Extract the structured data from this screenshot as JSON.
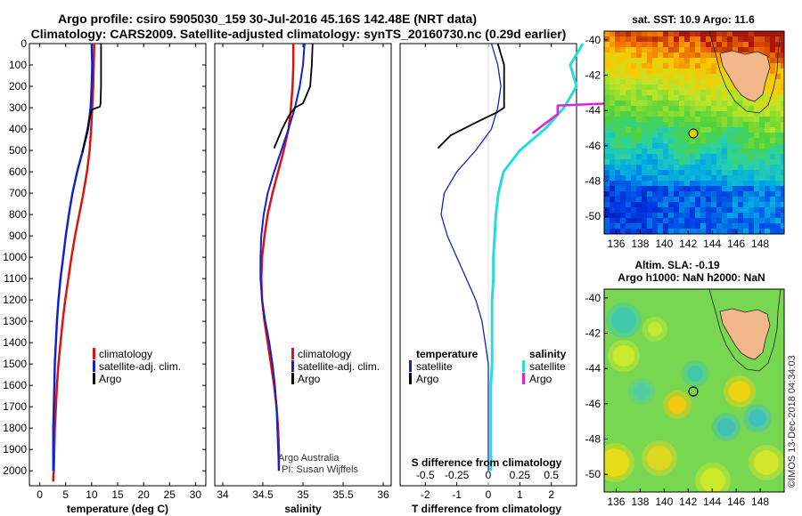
{
  "header": {
    "line1": "Argo profile: csiro 5905030_159 30-Jul-2016 45.16S 142.48E (NRT data)",
    "line2": "Climatology: CARS2009. Satellite-adjusted climatology: synTS_20160730.nc (0.29d earlier)"
  },
  "credits": {
    "org": "Argo Australia",
    "pi": "PI: Susan Wijffels",
    "imos": "©IMOS 13-Dec-2018 04:34:03"
  },
  "colors": {
    "climatology": "#dd1111",
    "satellite": "#1122cc",
    "argo": "#000000",
    "sal_satellite": "#22dddd",
    "sal_argo": "#dd22dd",
    "land": "#f2b88a"
  },
  "chart_data": [
    {
      "type": "line",
      "xlabel": "temperature (deg C)",
      "ylabel": "",
      "xlim": [
        -2,
        32
      ],
      "ylim": [
        2070,
        0
      ],
      "xticks": [
        "0",
        "5",
        "10",
        "15",
        "20",
        "25",
        "30"
      ],
      "yticks": [
        "0",
        "100",
        "200",
        "300",
        "400",
        "500",
        "600",
        "700",
        "800",
        "900",
        "1000",
        "1100",
        "1200",
        "1300",
        "1400",
        "1500",
        "1600",
        "1700",
        "1800",
        "1900",
        "2000"
      ],
      "legend": [
        "climatology",
        "satellite-adj. clim.",
        "Argo"
      ],
      "series": [
        {
          "name": "climatology",
          "x": [
            10.5,
            10.4,
            10.3,
            10.1,
            9.9,
            9.6,
            9.1,
            8.4,
            7.6,
            6.8,
            6.1,
            5.5,
            4.9,
            4.4,
            4.0,
            3.6,
            3.3,
            3.1,
            2.9,
            2.8,
            2.7,
            2.6,
            2.6
          ],
          "y": [
            0,
            100,
            200,
            300,
            400,
            500,
            600,
            700,
            800,
            900,
            1000,
            1100,
            1200,
            1300,
            1400,
            1500,
            1600,
            1700,
            1800,
            1900,
            2000,
            2030,
            2050
          ]
        },
        {
          "name": "satellite-adj. clim.",
          "x": [
            10.0,
            10.1,
            10.0,
            9.8,
            9.3,
            8.3,
            7.2,
            6.3,
            5.6,
            5.0,
            4.5,
            4.0,
            3.6,
            3.3,
            3.1,
            2.9,
            2.8,
            2.7,
            2.6,
            2.6,
            2.6
          ],
          "y": [
            0,
            100,
            200,
            300,
            400,
            500,
            600,
            700,
            800,
            900,
            1000,
            1100,
            1200,
            1300,
            1400,
            1500,
            1600,
            1700,
            1800,
            1900,
            2000
          ]
        },
        {
          "name": "Argo",
          "x": [
            11.8,
            11.8,
            11.8,
            11.7,
            11.6,
            10.0,
            9.5,
            9.0,
            8.2
          ],
          "y": [
            0,
            100,
            200,
            280,
            295,
            310,
            360,
            420,
            510
          ]
        }
      ]
    },
    {
      "type": "line",
      "xlabel": "salinity",
      "ylabel": "",
      "xlim": [
        33.9,
        36.1
      ],
      "ylim": [
        2070,
        0
      ],
      "xticks": [
        "34",
        "34.5",
        "35",
        "35.5",
        "36"
      ],
      "legend": [
        "climatology",
        "satellite-adj. clim.",
        "Argo"
      ],
      "series": [
        {
          "name": "climatology",
          "x": [
            34.88,
            34.88,
            34.87,
            34.85,
            34.82,
            34.76,
            34.69,
            34.62,
            34.56,
            34.52,
            34.49,
            34.48,
            34.49,
            34.52,
            34.56,
            34.6,
            34.64,
            34.67,
            34.69,
            34.7,
            34.7
          ],
          "y": [
            0,
            100,
            200,
            300,
            400,
            500,
            600,
            700,
            800,
            900,
            1000,
            1100,
            1200,
            1300,
            1400,
            1500,
            1600,
            1700,
            1800,
            1900,
            2000
          ]
        },
        {
          "name": "satellite-adj. clim.",
          "x": [
            35.02,
            35.0,
            34.96,
            34.9,
            34.82,
            34.73,
            34.64,
            34.56,
            34.51,
            34.48,
            34.47,
            34.47,
            34.49,
            34.53,
            34.58,
            34.62,
            34.65,
            34.67,
            34.68,
            34.69,
            34.7
          ],
          "y": [
            0,
            100,
            200,
            300,
            400,
            500,
            600,
            700,
            800,
            900,
            1000,
            1100,
            1200,
            1300,
            1400,
            1500,
            1600,
            1700,
            1800,
            1900,
            2000
          ]
        },
        {
          "name": "Argo",
          "x": [
            35.12,
            35.11,
            35.09,
            35.0,
            34.9,
            34.82,
            34.74,
            34.64
          ],
          "y": [
            0,
            100,
            200,
            280,
            300,
            340,
            400,
            490
          ]
        }
      ]
    },
    {
      "type": "line",
      "xlabel": "T difference from climatology",
      "x2label": "S difference from climatology",
      "xlim": [
        -2.8,
        2.8
      ],
      "x2lim": [
        -0.7,
        0.7
      ],
      "ylim": [
        2070,
        0
      ],
      "xticks": [
        "-2",
        "-1",
        "0",
        "1",
        "2"
      ],
      "x2ticks": [
        "-0.5",
        "-0.25",
        "0",
        "0.25",
        "0.5"
      ],
      "legend_left": [
        "temperature",
        "satellite",
        "Argo"
      ],
      "legend_right": [
        "salinity",
        "satellite",
        "Argo"
      ],
      "series": [
        {
          "name": "satellite",
          "x": [
            0.1,
            0.3,
            0.4,
            0.3,
            0.1,
            -0.4,
            -1.0,
            -1.4,
            -1.5,
            -1.3,
            -1.0,
            -0.7,
            -0.4,
            -0.2,
            -0.1,
            0.0,
            0.0,
            0.0,
            0.0,
            0.0,
            0.0
          ],
          "y": [
            0,
            100,
            200,
            300,
            400,
            500,
            600,
            700,
            800,
            900,
            1000,
            1100,
            1200,
            1300,
            1400,
            1500,
            1600,
            1700,
            1800,
            1900,
            2000
          ]
        },
        {
          "name": "Argo",
          "x": [
            0.3,
            0.5,
            0.5,
            0.5,
            0.3,
            -0.4,
            -1.2,
            -1.6
          ],
          "y": [
            0,
            100,
            200,
            300,
            320,
            370,
            430,
            490
          ]
        },
        {
          "name": "satellite",
          "x": [
            0.75,
            0.65,
            0.7,
            0.6,
            0.45,
            0.25,
            0.12,
            0.08,
            0.06,
            0.05,
            0.04,
            0.04,
            0.03,
            0.03,
            0.03,
            0.03,
            0.02,
            0.02,
            0.02,
            0.02,
            0.02
          ],
          "y": [
            0,
            100,
            200,
            300,
            400,
            500,
            600,
            700,
            800,
            900,
            1000,
            1100,
            1200,
            1300,
            1400,
            1500,
            1600,
            1700,
            1800,
            1900,
            2000
          ]
        },
        {
          "name": "Argo",
          "x": [
            1.7,
            1.65,
            1.45,
            1.4,
            0.55,
            0.55,
            0.35
          ],
          "y": [
            0,
            100,
            200,
            270,
            290,
            330,
            420
          ]
        }
      ]
    }
  ],
  "maps": [
    {
      "title": "sat. SST: 10.9 Argo: 11.6",
      "lon_ticks": [
        "136",
        "138",
        "140",
        "142",
        "144",
        "146",
        "148"
      ],
      "lat_ticks": [
        "-40",
        "-42",
        "-44",
        "-46",
        "-48",
        "-50"
      ],
      "lonlim": [
        135,
        150
      ],
      "latlim": [
        -51,
        -39.5
      ],
      "float_lon": 142.48,
      "float_lat": -45.16
    },
    {
      "title": "Altim. SLA: -0.19",
      "subtitle": "Argo h1000: NaN h2000: NaN",
      "lon_ticks": [
        "136",
        "138",
        "140",
        "142",
        "144",
        "146",
        "148"
      ],
      "lat_ticks": [
        "-40",
        "-42",
        "-44",
        "-46",
        "-48",
        "-50"
      ],
      "lonlim": [
        135,
        150
      ],
      "latlim": [
        -51,
        -39.5
      ],
      "float_lon": 142.48,
      "float_lat": -45.16
    }
  ]
}
